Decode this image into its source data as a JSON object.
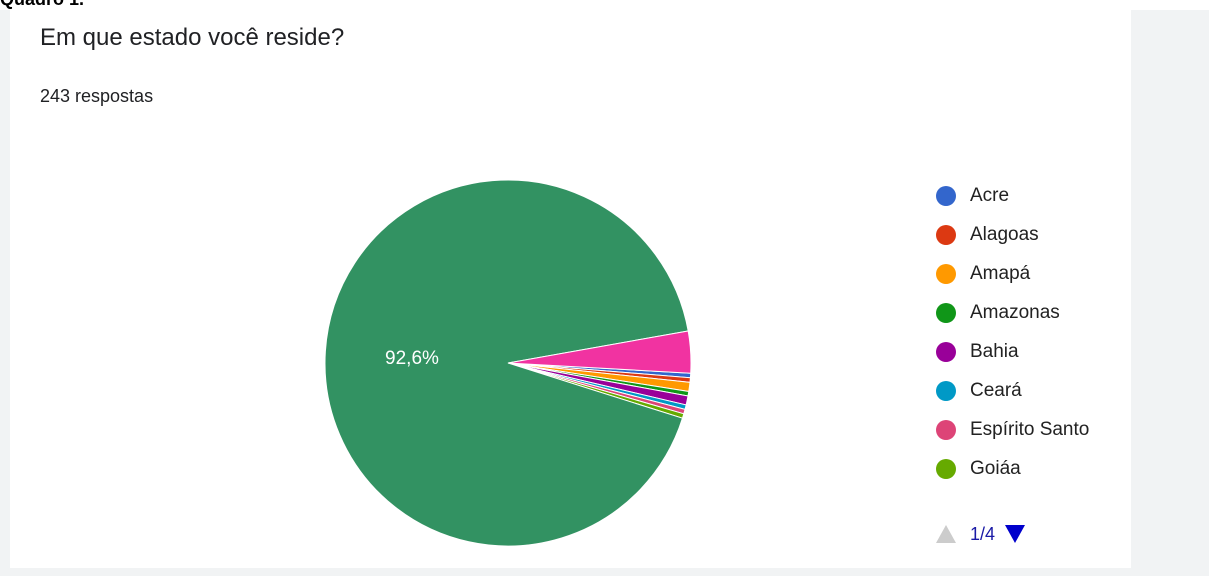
{
  "header": {
    "caption": "Quadro 1."
  },
  "chart_data": {
    "type": "pie",
    "title": "Em que estado você reside?",
    "subtitle": "243 respostas",
    "slices": [
      {
        "label": "Acre",
        "value": 0.4,
        "color": "#3366cc"
      },
      {
        "label": "Alagoas",
        "value": 0.4,
        "color": "#dc3912"
      },
      {
        "label": "Amapá",
        "value": 0.8,
        "color": "#ff9900"
      },
      {
        "label": "Amazonas",
        "value": 0.4,
        "color": "#109618"
      },
      {
        "label": "Bahia",
        "value": 0.8,
        "color": "#990099"
      },
      {
        "label": "Ceará",
        "value": 0.4,
        "color": "#0099c6"
      },
      {
        "label": "Espírito Santo",
        "value": 0.4,
        "color": "#dd4477"
      },
      {
        "label": "Goiáa",
        "value": 0.4,
        "color": "#66aa00"
      },
      {
        "label": "",
        "value": 92.6,
        "color": "#329262",
        "data_label": "92,6%"
      },
      {
        "label": "",
        "value": 3.7,
        "color": "#f133a1"
      }
    ],
    "legend": {
      "placement": "right",
      "items": [
        {
          "label": "Acre",
          "color": "#3366cc"
        },
        {
          "label": "Alagoas",
          "color": "#dc3912"
        },
        {
          "label": "Amapá",
          "color": "#ff9900"
        },
        {
          "label": "Amazonas",
          "color": "#109618"
        },
        {
          "label": "Bahia",
          "color": "#990099"
        },
        {
          "label": "Ceará",
          "color": "#0099c6"
        },
        {
          "label": "Espírito Santo",
          "color": "#dd4477"
        },
        {
          "label": "Goiáa",
          "color": "#66aa00"
        }
      ],
      "pager": {
        "label": "1/4",
        "current_page": 1,
        "total_pages": 4
      }
    }
  }
}
